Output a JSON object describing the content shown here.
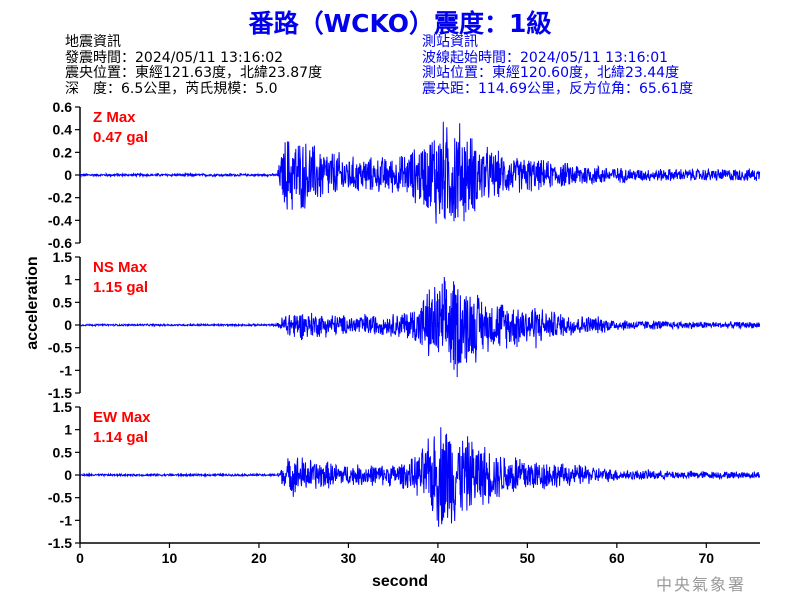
{
  "header": {
    "title": "番路（WCKO）震度：1級",
    "event_info": {
      "heading": "地震資訊",
      "origin_time": "發震時間：2024/05/11 13:16:02",
      "epicenter": "震央位置：東經121.63度，北緯23.87度",
      "depth_magnitude": "深　度：6.5公里，芮氏規模：5.0"
    },
    "station_info": {
      "heading": "測站資訊",
      "record_start": "波線起始時間：2024/05/11 13:16:01",
      "location": "測站位置：東經120.60度，北緯23.44度",
      "distance_azimuth": "震央距：114.69公里，反方位角：65.61度"
    }
  },
  "watermark": "中央氣象署",
  "colors": {
    "trace": "#0000ff",
    "max_label": "#ff0000",
    "title": "#0000ee",
    "watermark": "#9a9a9a"
  },
  "chart_data": {
    "type": "line",
    "xlabel": "second",
    "ylabel": "acceleration",
    "xlim": [
      0,
      76
    ],
    "xticks": [
      "0",
      "10",
      "20",
      "30",
      "40",
      "50",
      "60",
      "70"
    ],
    "panels": [
      {
        "component": "Z",
        "max_label": "Z Max",
        "max_value": "0.47 gal",
        "peak": 0.47,
        "ylim": [
          -0.6,
          0.6
        ],
        "yticks": [
          "0.6",
          "0.4",
          "0.2",
          "0",
          "-0.2",
          "-0.4",
          "-0.6"
        ],
        "amplitude_envelope": [
          0.01,
          0.01,
          0.01,
          0.01,
          0.01,
          0.01,
          0.01,
          0.01,
          0.01,
          0.01,
          0.01,
          0.01,
          0.01,
          0.01,
          0.01,
          0.01,
          0.01,
          0.01,
          0.01,
          0.01,
          0.01,
          0.01,
          0.01,
          0.32,
          0.3,
          0.28,
          0.25,
          0.22,
          0.2,
          0.18,
          0.15,
          0.14,
          0.15,
          0.13,
          0.15,
          0.14,
          0.16,
          0.2,
          0.25,
          0.3,
          0.47,
          0.4,
          0.46,
          0.38,
          0.3,
          0.25,
          0.2,
          0.18,
          0.15,
          0.14,
          0.15,
          0.12,
          0.12,
          0.1,
          0.1,
          0.09,
          0.1,
          0.08,
          0.08,
          0.07,
          0.06,
          0.06,
          0.05,
          0.05,
          0.05,
          0.05,
          0.05,
          0.05,
          0.05,
          0.05,
          0.05,
          0.05,
          0.05,
          0.05,
          0.05,
          0.05
        ]
      },
      {
        "component": "NS",
        "max_label": "NS Max",
        "max_value": "1.15 gal",
        "peak": 1.15,
        "ylim": [
          -1.5,
          1.5
        ],
        "yticks": [
          "1.5",
          "1",
          "0.5",
          "0",
          "-0.5",
          "-1",
          "-1.5"
        ],
        "amplitude_envelope": [
          0.02,
          0.02,
          0.02,
          0.02,
          0.02,
          0.02,
          0.02,
          0.02,
          0.02,
          0.02,
          0.02,
          0.02,
          0.02,
          0.02,
          0.02,
          0.02,
          0.02,
          0.02,
          0.02,
          0.02,
          0.02,
          0.02,
          0.02,
          0.3,
          0.32,
          0.3,
          0.28,
          0.25,
          0.25,
          0.22,
          0.2,
          0.22,
          0.25,
          0.22,
          0.2,
          0.25,
          0.3,
          0.35,
          0.5,
          0.8,
          0.9,
          1.0,
          1.15,
          0.9,
          0.8,
          0.6,
          0.5,
          0.55,
          0.45,
          0.5,
          0.4,
          0.5,
          0.3,
          0.3,
          0.25,
          0.25,
          0.2,
          0.2,
          0.18,
          0.15,
          0.12,
          0.12,
          0.1,
          0.1,
          0.1,
          0.1,
          0.08,
          0.08,
          0.08,
          0.08,
          0.07,
          0.07,
          0.07,
          0.07,
          0.07,
          0.07
        ]
      },
      {
        "component": "EW",
        "max_label": "EW Max",
        "max_value": "1.14 gal",
        "peak": 1.14,
        "ylim": [
          -1.5,
          1.5
        ],
        "yticks": [
          "1.5",
          "1",
          "0.5",
          "0",
          "-0.5",
          "-1",
          "-1.5"
        ],
        "amplitude_envelope": [
          0.02,
          0.02,
          0.02,
          0.02,
          0.02,
          0.02,
          0.02,
          0.02,
          0.02,
          0.02,
          0.02,
          0.02,
          0.02,
          0.02,
          0.02,
          0.02,
          0.02,
          0.02,
          0.02,
          0.02,
          0.02,
          0.02,
          0.02,
          0.3,
          0.4,
          0.35,
          0.3,
          0.28,
          0.25,
          0.22,
          0.2,
          0.2,
          0.22,
          0.2,
          0.2,
          0.22,
          0.25,
          0.3,
          0.45,
          0.7,
          1.0,
          1.14,
          0.9,
          0.75,
          0.7,
          0.6,
          0.5,
          0.45,
          0.4,
          0.45,
          0.35,
          0.3,
          0.3,
          0.25,
          0.22,
          0.2,
          0.2,
          0.18,
          0.15,
          0.13,
          0.12,
          0.1,
          0.1,
          0.1,
          0.1,
          0.08,
          0.08,
          0.08,
          0.08,
          0.08,
          0.07,
          0.07,
          0.07,
          0.07,
          0.07,
          0.07
        ]
      }
    ]
  }
}
